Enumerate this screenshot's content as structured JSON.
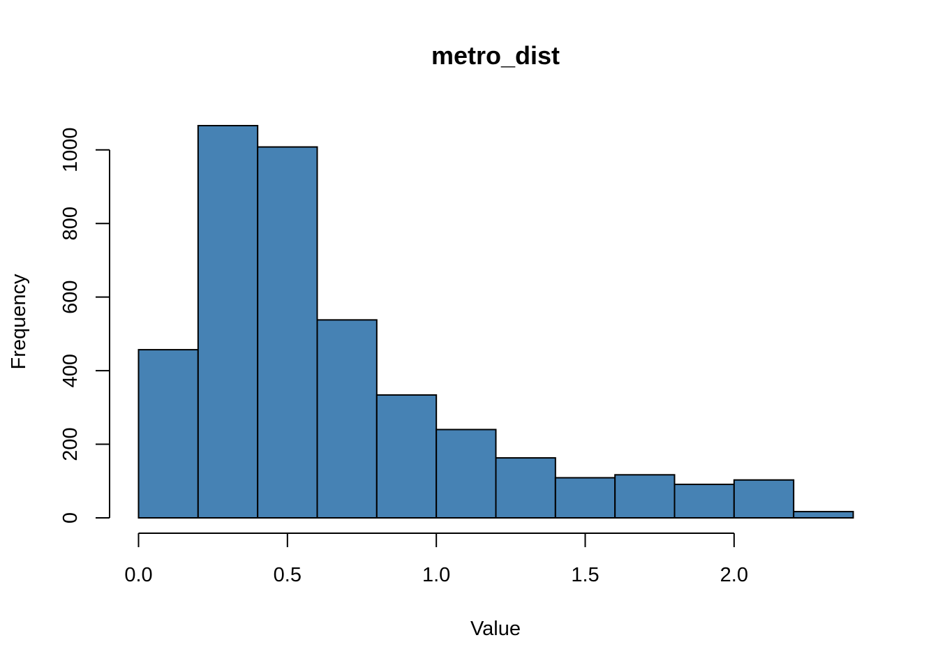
{
  "chart_data": {
    "type": "bar",
    "title": "metro_dist",
    "xlabel": "Value",
    "ylabel": "Frequency",
    "bar_color": "#4682B4",
    "bin_edges": [
      0.0,
      0.2,
      0.4,
      0.6,
      0.8,
      1.0,
      1.2,
      1.4,
      1.6,
      1.8,
      2.0,
      2.2,
      2.4
    ],
    "values": [
      457,
      1066,
      1008,
      538,
      334,
      240,
      163,
      109,
      117,
      91,
      103,
      17
    ],
    "xlim": [
      0.0,
      2.4
    ],
    "ylim": [
      0,
      1066
    ],
    "x_ticks": [
      0.0,
      0.5,
      1.0,
      1.5,
      2.0
    ],
    "x_tick_labels": [
      "0.0",
      "0.5",
      "1.0",
      "1.5",
      "2.0"
    ],
    "y_ticks": [
      0,
      200,
      400,
      600,
      800,
      1000
    ],
    "y_tick_labels": [
      "0",
      "200",
      "400",
      "600",
      "800",
      "1000"
    ],
    "grid": false,
    "legend": "none"
  }
}
